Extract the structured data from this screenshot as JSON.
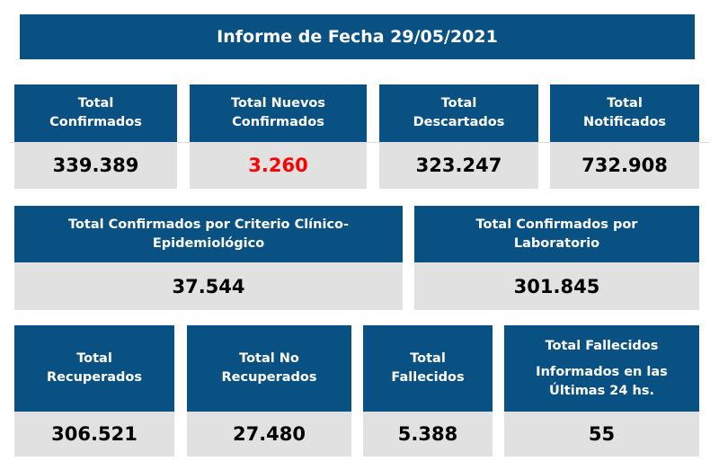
{
  "title": "Informe de Fecha 29/05/2021",
  "colors": {
    "header": "#0a5183",
    "value_bg": "#e1e1e1",
    "highlight": "#ff0000"
  },
  "cards": [
    {
      "label": "Total Confirmados",
      "value": "339.389"
    },
    {
      "label": "Total Nuevos Confirmados",
      "value": "3.260"
    },
    {
      "label": "Total Descartados",
      "value": "323.247"
    },
    {
      "label": "Total Notificados",
      "value": "732.908"
    },
    {
      "label": "Total Confirmados por Criterio Clínico-Epidemiológico",
      "value": "37.544"
    },
    {
      "label": "Total Confirmados por Laboratorio",
      "value": "301.845"
    },
    {
      "label": "Total Recuperados",
      "value": "306.521"
    },
    {
      "label": "Total No Recuperados",
      "value": "27.480"
    },
    {
      "label": "Total Fallecidos",
      "value": "5.388"
    },
    {
      "label": "Total Fallecidos",
      "sublabel": "Informados en las Últimas 24 hs.",
      "value": "55"
    }
  ]
}
